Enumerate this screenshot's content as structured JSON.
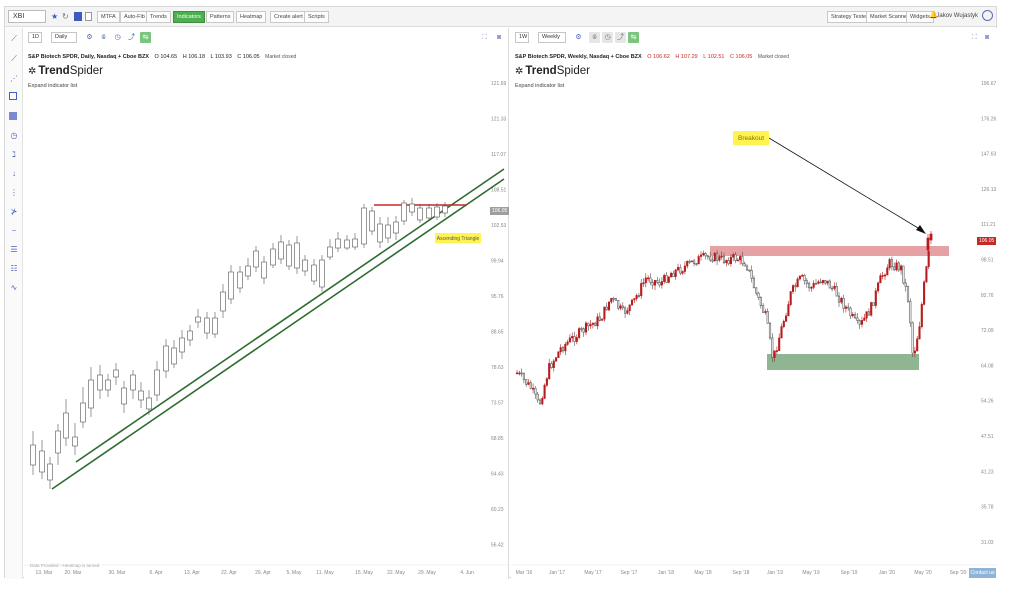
{
  "toolbar": {
    "symbol": "XBI",
    "buttons": [
      "MTFA",
      "Auto-Fib",
      "Trends",
      "Indicators",
      "Patterns",
      "Heatmap",
      "Create alert",
      "Scripts"
    ],
    "active_button": "Indicators",
    "right_buttons": [
      "Strategy Tester",
      "Market Scanner",
      "Widgets"
    ],
    "user_name": "Jakov Wujastyk"
  },
  "left_chart": {
    "interval": "1D",
    "timeframe": "Daily",
    "title": "S&P Biotech SPDR, Daily, Nasdaq + Cboe BZX",
    "ohlc": {
      "o": "O 104.65",
      "h": "H 106.18",
      "l": "L 103.93",
      "c": "C 106.05"
    },
    "market_status": "Market closed",
    "brand_light": "Trend",
    "brand_bold": "Spider",
    "expand_label": "Expand indicator list",
    "price_tag": "106.05",
    "annotation": "Ascending Triangle",
    "footnote": "Data Provided - Heatmap is turned",
    "y_labels": [
      "121.69",
      "121.33",
      "117.07",
      "108.51",
      "102.53",
      "99.94",
      "95.76",
      "88.65",
      "78.63",
      "73.57",
      "68.85",
      "64.43",
      "60.23",
      "56.42"
    ],
    "x_labels": [
      "13. Mar",
      "20. Mar",
      "30. Mar",
      "6. Apr",
      "13. Apr",
      "22. Apr",
      "29. Apr",
      "5. May",
      "11. May",
      "15. May",
      "22. May",
      "29. May",
      "4. Jun"
    ]
  },
  "right_chart": {
    "interval": "1W",
    "timeframe": "Weekly",
    "title": "S&P Biotech SPDR, Weekly, Nasdaq + Cboe BZX",
    "ohlc": {
      "o": "O 106.62",
      "h": "H 107.29",
      "l": "L 102.51",
      "c": "C 106.05"
    },
    "market_status": "Market closed",
    "brand_light": "Trend",
    "brand_bold": "Spider",
    "expand_label": "Expand indicator list",
    "price_tag": "106.05",
    "annotation": "Breakout",
    "contact_label": "Contact us",
    "y_labels": [
      "196.67",
      "176.26",
      "147.63",
      "126.13",
      "111.21",
      "98.51",
      "82.76",
      "72.09",
      "64.08",
      "54.26",
      "47.51",
      "41.23",
      "35.78",
      "31.03"
    ],
    "x_labels": [
      "Mar '16",
      "Jan '17",
      "May '17",
      "Sep '17",
      "Jan '18",
      "May '18",
      "Sep '18",
      "Jan '19",
      "May '19",
      "Sep '19",
      "Jan '20",
      "May '20",
      "Sep '20"
    ]
  },
  "colors": {
    "up": "#ffffff",
    "down": "#b71c1c",
    "trendline": "#2e6b2e",
    "resistance": "#c62828",
    "resistance_zone": "#e6a1a4",
    "support_zone": "#8fb592",
    "label_bg": "#fff44f"
  }
}
